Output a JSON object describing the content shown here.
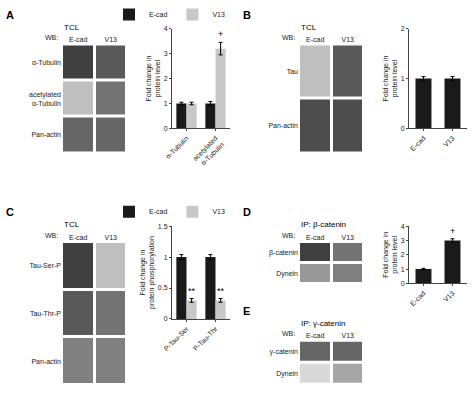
{
  "chart_data": [
    {
      "type": "heatmap",
      "title": "TCL",
      "annotations": [
        "A",
        "WB:"
      ],
      "x": [
        "E-cad",
        "V13"
      ],
      "y": [
        "α-Tubulin",
        "acetylated\nα-Tubulin",
        "Pan-actin"
      ],
      "cells": [
        [
          0.75,
          0.65
        ],
        [
          0.25,
          0.55
        ],
        [
          0.6,
          0.6
        ]
      ],
      "zlim": [
        0,
        1
      ]
    },
    {
      "type": "bar",
      "categories": [
        "α-Tubulin",
        "acetylated\nα-Tubulin"
      ],
      "series": [
        {
          "name": "E-cad",
          "color": "#1a1a1a",
          "values": [
            1.0,
            1.0
          ],
          "errors": [
            0.05,
            0.08
          ]
        },
        {
          "name": "V13",
          "color": "#c8c8c8",
          "values": [
            1.0,
            3.2
          ],
          "errors": [
            0.05,
            0.25
          ]
        }
      ],
      "ylabel": "Fold change in\nprotein level",
      "ylim": [
        0,
        4
      ],
      "yticks": [
        0,
        1,
        2,
        3,
        4
      ],
      "grid": false,
      "legend": "top",
      "annotations": [
        {
          "text": "+",
          "category": "acetylated\nα-Tubulin",
          "series": "V13"
        }
      ]
    },
    {
      "type": "heatmap",
      "title": "TCL",
      "annotations": [
        "B",
        "WB:"
      ],
      "x": [
        "E-cad",
        "V13"
      ],
      "y": [
        "Tau",
        "Pan-actin"
      ],
      "cells": [
        [
          0.25,
          0.65
        ],
        [
          0.7,
          0.7
        ]
      ],
      "zlim": [
        0,
        1
      ]
    },
    {
      "type": "bar",
      "categories": [
        "E-cad",
        "V13"
      ],
      "color": "#1a1a1a",
      "values": [
        1.0,
        1.0
      ],
      "errors": [
        0.04,
        0.04
      ],
      "ylabel": "Fold change in\nprotein level",
      "ylim": [
        0,
        2
      ],
      "yticks": [
        0,
        1,
        2
      ],
      "grid": false
    },
    {
      "type": "heatmap",
      "title": "TCL",
      "annotations": [
        "C",
        "WB:"
      ],
      "x": [
        "E-cad",
        "V13"
      ],
      "y": [
        "Tau-Ser-P",
        "Tau-Thr-P",
        "Pan-actin"
      ],
      "cells": [
        [
          0.75,
          0.25
        ],
        [
          0.65,
          0.55
        ],
        [
          0.5,
          0.5
        ]
      ],
      "zlim": [
        0,
        1
      ]
    },
    {
      "type": "bar",
      "categories": [
        "P-Tau-Ser",
        "P-Tau-Thr"
      ],
      "series": [
        {
          "name": "E-cad",
          "color": "#1a1a1a",
          "values": [
            1.0,
            1.0
          ],
          "errors": [
            0.04,
            0.04
          ]
        },
        {
          "name": "V13",
          "color": "#c8c8c8",
          "values": [
            0.3,
            0.3
          ],
          "errors": [
            0.03,
            0.03
          ]
        }
      ],
      "ylabel": "Fold change in\nprotein phosphorylation",
      "ylim": [
        0,
        1.5
      ],
      "yticks": [
        0,
        0.5,
        1.0,
        1.5
      ],
      "grid": false,
      "legend": "top",
      "annotations": [
        {
          "text": "**",
          "category": "P-Tau-Ser",
          "series": "V13"
        },
        {
          "text": "**",
          "category": "P-Tau-Thr",
          "series": "V13"
        }
      ]
    },
    {
      "type": "heatmap",
      "title": "IP: β-catenin",
      "annotations": [
        "D",
        "WB:"
      ],
      "x": [
        "E-cad",
        "V13"
      ],
      "y": [
        "β-catenin",
        "Dynein"
      ],
      "cells": [
        [
          0.75,
          0.55
        ],
        [
          0.4,
          0.5
        ]
      ],
      "zlim": [
        0,
        1
      ]
    },
    {
      "type": "bar",
      "categories": [
        "E-cad",
        "V13"
      ],
      "color": "#1a1a1a",
      "values": [
        1.0,
        3.0
      ],
      "errors": [
        0.05,
        0.12
      ],
      "ylabel": "Fold change in\nprotein level",
      "ylim": [
        0,
        4
      ],
      "yticks": [
        0,
        1,
        2,
        3,
        4
      ],
      "grid": false,
      "annotations": [
        {
          "text": "+",
          "category": "V13"
        }
      ]
    },
    {
      "type": "heatmap",
      "title": "IP: γ-catenin",
      "annotations": [
        "E",
        "WB:"
      ],
      "x": [
        "E-cad",
        "V13"
      ],
      "y": [
        "γ-catenin",
        "Dynein"
      ],
      "cells": [
        [
          0.6,
          0.6
        ],
        [
          0.15,
          0.35
        ]
      ],
      "zlim": [
        0,
        1
      ]
    }
  ]
}
